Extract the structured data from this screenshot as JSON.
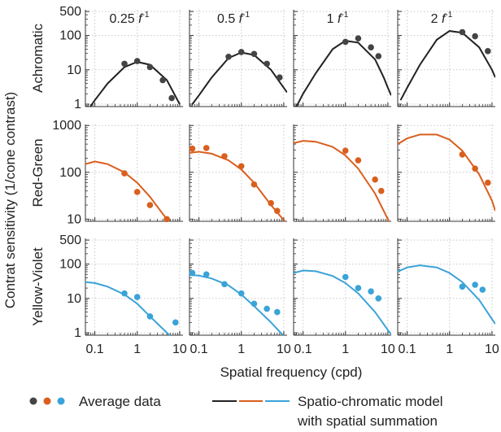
{
  "figure": {
    "ylabel": "Contrat sensitivity (1/cone contrast)",
    "xlabel": "Spatial frequency (cpd)",
    "legend": {
      "data_label": "Average data",
      "model_label_line1": "Spatio-chromatic model",
      "model_label_line2": "with spatial summation"
    }
  },
  "chart_data": {
    "type": "scatter",
    "x_scale": "log",
    "y_scale": "log",
    "grid": true,
    "xlim": [
      0.06,
      12
    ],
    "x_ticks": [
      0.1,
      1,
      10
    ],
    "x_tick_labels": [
      "0.1",
      "1",
      "10"
    ],
    "columns": [
      {
        "label": "0.25",
        "unit": "f",
        "unit_exp": "-1"
      },
      {
        "label": "0.5",
        "unit": "f",
        "unit_exp": "-1"
      },
      {
        "label": "1",
        "unit": "f",
        "unit_exp": "-1"
      },
      {
        "label": "2",
        "unit": "f",
        "unit_exp": "-1"
      }
    ],
    "rows": [
      {
        "label": "Achromatic",
        "color": "#222222",
        "ylim": [
          0.85,
          560
        ],
        "y_ticks": [
          1,
          10,
          100,
          500
        ],
        "y_tick_labels": [
          "1",
          "10",
          "100",
          "500"
        ],
        "panels": [
          {
            "points": [
              {
                "x": 0.5,
                "y": 15
              },
              {
                "x": 1,
                "y": 18
              },
              {
                "x": 2,
                "y": 12
              },
              {
                "x": 4,
                "y": 5
              },
              {
                "x": 6.5,
                "y": 1.5
              }
            ],
            "model": {
              "x": [
                0.07,
                0.1,
                0.2,
                0.5,
                1,
                2,
                5,
                10
              ],
              "y": [
                0.7,
                1.3,
                4,
                12,
                17,
                14,
                5,
                1
              ]
            }
          },
          {
            "points": [
              {
                "x": 0.5,
                "y": 24
              },
              {
                "x": 1,
                "y": 33
              },
              {
                "x": 2,
                "y": 29
              },
              {
                "x": 4,
                "y": 15
              },
              {
                "x": 8,
                "y": 6
              }
            ],
            "model": {
              "x": [
                0.07,
                0.1,
                0.2,
                0.5,
                1,
                2,
                5,
                10,
                12
              ],
              "y": [
                1.0,
                1.8,
                6,
                22,
                32,
                27,
                10,
                3,
                2.2
              ]
            }
          },
          {
            "points": [
              {
                "x": 1,
                "y": 65
              },
              {
                "x": 2,
                "y": 82
              },
              {
                "x": 4,
                "y": 45
              },
              {
                "x": 6,
                "y": 25
              }
            ],
            "model": {
              "x": [
                0.07,
                0.1,
                0.2,
                0.5,
                1,
                2,
                5,
                8,
                10,
                12
              ],
              "y": [
                0.85,
                2,
                8,
                40,
                70,
                62,
                20,
                6,
                3,
                1.8
              ]
            }
          },
          {
            "points": [
              {
                "x": 2,
                "y": 125
              },
              {
                "x": 4,
                "y": 95
              },
              {
                "x": 8,
                "y": 35
              }
            ],
            "model": {
              "x": [
                0.07,
                0.1,
                0.2,
                0.5,
                1,
                2,
                5,
                10,
                12
              ],
              "y": [
                1.3,
                3,
                14,
                75,
                135,
                120,
                45,
                10,
                6
              ]
            }
          }
        ]
      },
      {
        "label": "Red-Green",
        "color": "#d95f1e",
        "ylim": [
          9,
          1050
        ],
        "y_ticks": [
          10,
          100,
          1000
        ],
        "y_tick_labels": [
          "10",
          "100",
          "1000"
        ],
        "panels": [
          {
            "points": [
              {
                "x": 0.5,
                "y": 95
              },
              {
                "x": 1,
                "y": 38
              },
              {
                "x": 2,
                "y": 20
              },
              {
                "x": 5,
                "y": 10
              }
            ],
            "model": {
              "x": [
                0.06,
                0.1,
                0.2,
                0.5,
                1,
                2,
                4,
                5,
                5.5
              ],
              "y": [
                150,
                170,
                150,
                100,
                60,
                30,
                13,
                10,
                9
              ]
            }
          },
          {
            "points": [
              {
                "x": 0.07,
                "y": 320
              },
              {
                "x": 0.15,
                "y": 330
              },
              {
                "x": 0.4,
                "y": 220
              },
              {
                "x": 1,
                "y": 135
              },
              {
                "x": 2,
                "y": 55
              },
              {
                "x": 5,
                "y": 22
              },
              {
                "x": 7,
                "y": 15
              }
            ],
            "model": {
              "x": [
                0.06,
                0.1,
                0.2,
                0.5,
                1,
                2,
                5,
                10,
                12
              ],
              "y": [
                260,
                275,
                250,
                180,
                115,
                60,
                20,
                9.5,
                8
              ]
            }
          },
          {
            "points": [
              {
                "x": 1,
                "y": 290
              },
              {
                "x": 2,
                "y": 180
              },
              {
                "x": 5,
                "y": 70
              },
              {
                "x": 7,
                "y": 40
              }
            ],
            "model": {
              "x": [
                0.06,
                0.1,
                0.2,
                0.5,
                1,
                2,
                5,
                10,
                12
              ],
              "y": [
                420,
                470,
                450,
                350,
                230,
                120,
                35,
                10,
                7
              ]
            }
          },
          {
            "points": [
              {
                "x": 2,
                "y": 240
              },
              {
                "x": 4,
                "y": 120
              },
              {
                "x": 8,
                "y": 60
              }
            ],
            "model": {
              "x": [
                0.06,
                0.1,
                0.2,
                0.5,
                1,
                2,
                5,
                10,
                12
              ],
              "y": [
                400,
                530,
                640,
                640,
                500,
                290,
                90,
                25,
                15
              ]
            }
          }
        ]
      },
      {
        "label": "Yellow-Violet",
        "color": "#3aa3d8",
        "ylim": [
          0.85,
          560
        ],
        "y_ticks": [
          1,
          10,
          100,
          500
        ],
        "y_tick_labels": [
          "1",
          "10",
          "100",
          "500"
        ],
        "panels": [
          {
            "points": [
              {
                "x": 0.5,
                "y": 14
              },
              {
                "x": 1,
                "y": 11
              },
              {
                "x": 2,
                "y": 3
              },
              {
                "x": 8,
                "y": 2
              }
            ],
            "model": {
              "x": [
                0.06,
                0.1,
                0.2,
                0.5,
                1,
                2,
                5,
                10,
                12
              ],
              "y": [
                30,
                28,
                22,
                13,
                7,
                3,
                1,
                0.45,
                0.35
              ]
            }
          },
          {
            "points": [
              {
                "x": 0.07,
                "y": 55
              },
              {
                "x": 0.15,
                "y": 50
              },
              {
                "x": 0.4,
                "y": 26
              },
              {
                "x": 1,
                "y": 14
              },
              {
                "x": 2,
                "y": 7
              },
              {
                "x": 4,
                "y": 5
              },
              {
                "x": 7,
                "y": 4
              }
            ],
            "model": {
              "x": [
                0.06,
                0.1,
                0.2,
                0.5,
                1,
                2,
                5,
                10,
                12
              ],
              "y": [
                48,
                46,
                38,
                24,
                13,
                6,
                2,
                0.8,
                0.6
              ]
            }
          },
          {
            "points": [
              {
                "x": 1,
                "y": 42
              },
              {
                "x": 2,
                "y": 20
              },
              {
                "x": 4,
                "y": 16
              },
              {
                "x": 6,
                "y": 10
              }
            ],
            "model": {
              "x": [
                0.06,
                0.1,
                0.2,
                0.5,
                1,
                2,
                5,
                10,
                12
              ],
              "y": [
                55,
                65,
                62,
                45,
                28,
                14,
                4,
                1.2,
                0.9
              ]
            }
          },
          {
            "points": [
              {
                "x": 2,
                "y": 22
              },
              {
                "x": 4,
                "y": 25
              },
              {
                "x": 6,
                "y": 18
              }
            ],
            "model": {
              "x": [
                0.06,
                0.1,
                0.2,
                0.5,
                1,
                2,
                5,
                10,
                12
              ],
              "y": [
                60,
                80,
                92,
                80,
                55,
                30,
                9,
                2.5,
                1.8
              ]
            }
          }
        ]
      }
    ]
  }
}
